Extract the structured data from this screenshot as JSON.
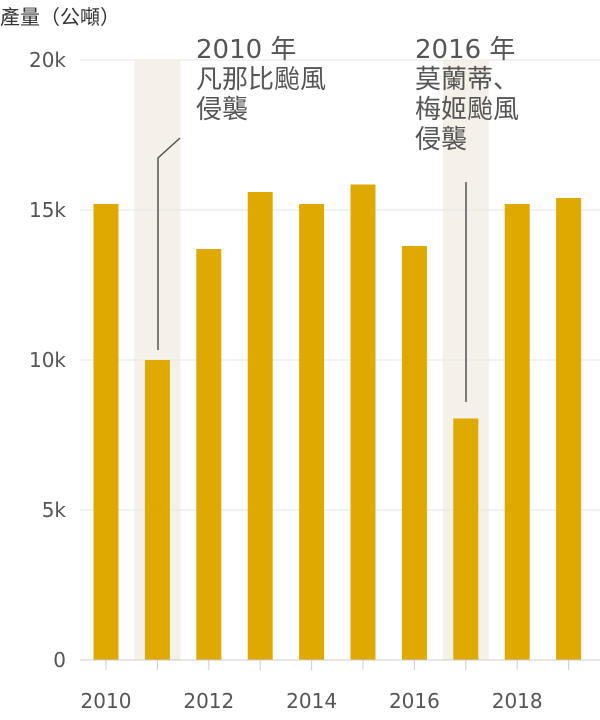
{
  "chart_data": {
    "type": "bar",
    "ylabel": "產量（公噸）",
    "categories": [
      "2010",
      "2011",
      "2012",
      "2013",
      "2014",
      "2015",
      "2016",
      "2017",
      "2018",
      "2019"
    ],
    "values": [
      15200,
      10000,
      13700,
      15600,
      15200,
      15850,
      13800,
      8050,
      15200,
      15400
    ],
    "ylim": [
      0,
      20000
    ],
    "yticks": [
      0,
      5000,
      10000,
      15000,
      20000
    ],
    "ytick_labels": [
      "0",
      "5k",
      "10k",
      "15k",
      "20k"
    ],
    "xtick_labels": [
      "2010",
      "2012",
      "2014",
      "2016",
      "2018"
    ],
    "xtick_categories": [
      "2010",
      "2012",
      "2014",
      "2016",
      "2018"
    ],
    "grid": true,
    "highlight_categories": [
      "2011",
      "2017"
    ],
    "annotations": [
      {
        "category": "2011",
        "lines": [
          "2010 年",
          "凡那比颱風",
          "侵襲"
        ]
      },
      {
        "category": "2017",
        "lines": [
          "2016 年",
          "莫蘭蒂、",
          "梅姬颱風",
          "侵襲"
        ]
      }
    ],
    "colors": {
      "bar": "#DEA900",
      "highlight": "#F6F1E8",
      "grid": "#E6E6E6",
      "axis": "#CCCCCC",
      "annotation_line": "#555555"
    }
  }
}
